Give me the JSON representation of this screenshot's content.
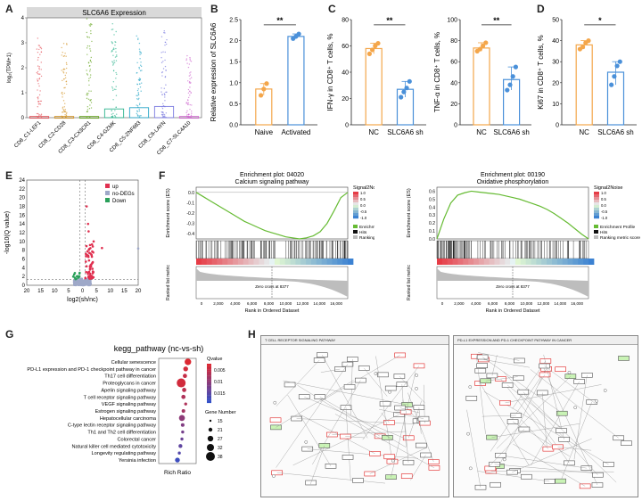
{
  "panel_labels": {
    "A": "A",
    "B": "B",
    "C": "C",
    "D": "D",
    "E": "E",
    "F": "F",
    "G": "G",
    "H": "H"
  },
  "colors": {
    "orange": "#f4a64a",
    "blue": "#4a90d9",
    "up": "#e03050",
    "nodeg": "#9ea8c8",
    "down": "#2aa05a",
    "green": "#66bb33"
  },
  "chart_data": [
    {
      "id": "A",
      "type": "violin",
      "title": "SLC6A6 Expression",
      "ylabel": "log₂(TPM+1)",
      "ylim": [
        0,
        4
      ],
      "yticks": [
        "0",
        "1",
        "2",
        "3",
        "4"
      ],
      "categories": [
        "CD8_C1-LEF1",
        "CD8_C2-CD28",
        "CD8_C3-CX3CR1",
        "CD8_C4-GZMK",
        "CD8_C5-ZNF683",
        "CD8_C6-LAYN",
        "CD8_C7-SLC4A10"
      ],
      "box_heights": [
        0.05,
        0.05,
        0.05,
        0.35,
        0.4,
        0.45,
        0.05
      ],
      "spread": [
        3.2,
        3.0,
        4.0,
        3.8,
        3.3,
        3.5,
        2.6
      ]
    },
    {
      "id": "B",
      "type": "bar",
      "ylabel": "Relative expression of SLC6A6",
      "ylim": [
        0,
        2.5
      ],
      "yticks": [
        "0.0",
        "0.5",
        "1.0",
        "1.5",
        "2.0",
        "2.5"
      ],
      "categories": [
        "Naive",
        "Activated"
      ],
      "values": [
        0.85,
        2.1
      ],
      "points": [
        [
          0.7,
          0.85,
          0.98
        ],
        [
          2.05,
          2.1,
          2.16
        ]
      ],
      "sig": "**"
    },
    {
      "id": "C1",
      "type": "bar",
      "ylabel": "IFN-γ in CD8⁺ T cells, %",
      "ylim": [
        0,
        80
      ],
      "yticks": [
        "0",
        "20",
        "40",
        "60",
        "80"
      ],
      "categories": [
        "NC",
        "SLC6A6 sh"
      ],
      "values": [
        58,
        27
      ],
      "points": [
        [
          54,
          57,
          60,
          62
        ],
        [
          21,
          25,
          28,
          33
        ]
      ],
      "sig": "**"
    },
    {
      "id": "C2",
      "type": "bar",
      "ylabel": "TNF-α in CD8⁺ T cells, %",
      "ylim": [
        0,
        100
      ],
      "yticks": [
        "0",
        "20",
        "40",
        "60",
        "80",
        "100"
      ],
      "categories": [
        "NC",
        "SLC6A6 sh"
      ],
      "values": [
        73,
        43
      ],
      "points": [
        [
          70,
          72,
          75,
          78
        ],
        [
          33,
          38,
          46,
          55
        ]
      ],
      "sig": "**"
    },
    {
      "id": "D",
      "type": "bar",
      "ylabel": "Ki67 in CD8⁺ T cells, %",
      "ylim": [
        0,
        50
      ],
      "yticks": [
        "0",
        "10",
        "20",
        "30",
        "40",
        "50"
      ],
      "categories": [
        "NC",
        "SLC6A6 sh"
      ],
      "values": [
        38,
        25
      ],
      "points": [
        [
          36,
          37,
          39,
          40
        ],
        [
          19,
          23,
          28,
          30
        ]
      ],
      "sig": "*"
    },
    {
      "id": "E",
      "type": "scatter",
      "xlabel": "log2(sh/nc)",
      "ylabel": "-log10(Q value)",
      "xlim": [
        -20,
        20
      ],
      "ylim": [
        0,
        24
      ],
      "xticks": [
        "20",
        "15",
        "10",
        "5",
        "0",
        "5",
        "10",
        "15",
        "20"
      ],
      "yticks": [
        "0",
        "2",
        "4",
        "6",
        "8",
        "10",
        "12",
        "14",
        "16",
        "18",
        "20",
        "22",
        "24"
      ],
      "legend": [
        "up",
        "no-DEGs",
        "Down"
      ]
    },
    {
      "id": "F1",
      "type": "line",
      "title_line1": "Enrichment plot: 04020",
      "title_line2": "Calcium signaling pathway",
      "ylabel_top": "Enrichment score (ES)",
      "ylabel_bottom": "Ranked list metric",
      "xlabel": "Rank in Ordered Dataset",
      "xticks": [
        "0",
        "2,000",
        "4,000",
        "6,000",
        "8,000",
        "10,000",
        "12,000",
        "14,000",
        "16,000"
      ],
      "yticks_top": [
        "0.0",
        "-0.1",
        "-0.2",
        "-0.3",
        "-0.4"
      ],
      "zero_cross": "Zero cross at 8377",
      "legend_title": "Signal2Noise",
      "legend_scale": [
        "1.0",
        "0.5",
        "0.0",
        "-0.5",
        "-1.0"
      ],
      "legend_items": [
        "Enrichment Profile",
        "Hits",
        "Ranking metric scores"
      ],
      "es": [
        0,
        -0.04,
        -0.08,
        -0.12,
        -0.16,
        -0.2,
        -0.24,
        -0.28,
        -0.31,
        -0.34,
        -0.37,
        -0.39,
        -0.41,
        -0.43,
        -0.44,
        -0.45,
        -0.44,
        -0.42,
        -0.38,
        -0.3,
        -0.18,
        -0.05,
        0
      ]
    },
    {
      "id": "F2",
      "type": "line",
      "title_line1": "Enrichment plot: 00190",
      "title_line2": "Oxidative phosphorylation",
      "ylabel_top": "Enrichment score (ES)",
      "ylabel_bottom": "Ranked list metric",
      "xlabel": "Rank in Ordered Dataset",
      "xticks": [
        "0",
        "2,000",
        "4,000",
        "6,000",
        "8,000",
        "10,000",
        "12,000",
        "14,000",
        "16,000"
      ],
      "yticks_top": [
        "0.6",
        "0.5",
        "0.4",
        "0.3",
        "0.2",
        "0.1",
        "0.0"
      ],
      "zero_cross": "Zero cross at 8377",
      "legend_title": "Signal2Noise",
      "legend_scale": [
        "1.0",
        "0.5",
        "0.0",
        "-0.5",
        "-1.0"
      ],
      "legend_items": [
        "Enrichment Profile",
        "Hits",
        "Ranking metric scores"
      ],
      "es": [
        0,
        0.25,
        0.45,
        0.55,
        0.58,
        0.6,
        0.59,
        0.58,
        0.57,
        0.56,
        0.54,
        0.52,
        0.5,
        0.47,
        0.44,
        0.41,
        0.37,
        0.32,
        0.26,
        0.2,
        0.13,
        0.06,
        0
      ]
    },
    {
      "id": "G",
      "type": "scatter",
      "title": "kegg_pathway (nc-vs-sh)",
      "xlabel": "Rich Ratio",
      "xlim": [
        0,
        1
      ],
      "colorbar_title": "Qvalue",
      "colorbar_ticks": [
        "0.005",
        "0.01",
        "0.015"
      ],
      "size_title": "Gene Number",
      "size_ticks": [
        "15",
        "21",
        "27",
        "32",
        "38"
      ],
      "categories": [
        "Cellular senescence",
        "PD-L1 expression and PD-1 checkpoint pathway in cancer",
        "Th17 cell differentiation",
        "Proteoglycans in cancer",
        "Apelin signaling pathway",
        "T cell receptor signaling pathway",
        "VEGF signaling pathway",
        "Estrogen signaling pathway",
        "Hepatocellular carcinoma",
        "C-type lectin receptor signaling pathway",
        "Th1 and Th2 cell differentiation",
        "Colorectal cancer",
        "Natural killer cell mediated cytotoxicity",
        "Longevity regulating pathway",
        "Yersinia infection"
      ],
      "rich_ratio": [
        0.78,
        0.72,
        0.7,
        0.6,
        0.68,
        0.66,
        0.72,
        0.66,
        0.62,
        0.64,
        0.64,
        0.62,
        0.58,
        0.55,
        0.5
      ],
      "qvalue": [
        0.001,
        0.002,
        0.003,
        0.002,
        0.004,
        0.005,
        0.005,
        0.006,
        0.008,
        0.009,
        0.01,
        0.011,
        0.012,
        0.013,
        0.015
      ],
      "gene_number": [
        30,
        24,
        22,
        38,
        22,
        22,
        18,
        20,
        28,
        20,
        18,
        18,
        21,
        18,
        24
      ]
    }
  ],
  "H": {
    "left_title": "T CELL RECEPTOR SIGNALING PATHWAY",
    "right_title": "PD-L1 EXPRESSION AND PD-1 CHECKPOINT PATHWAY IN CANCER"
  }
}
